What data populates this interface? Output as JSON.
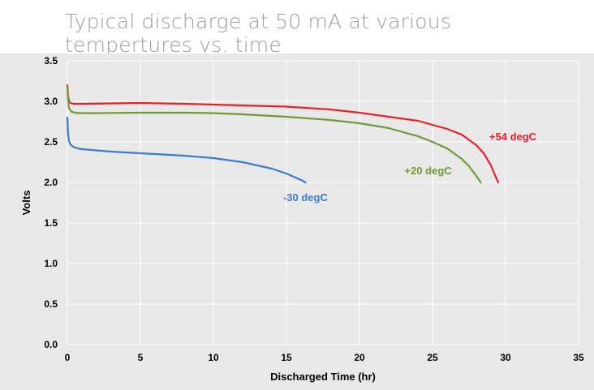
{
  "chart_data": {
    "type": "line",
    "title": "Typical discharge at 50 mA at various tempertures vs. time",
    "xlabel": "Discharged Time (hr)",
    "ylabel": "Volts",
    "xlim": [
      0,
      35
    ],
    "ylim": [
      0,
      3.5
    ],
    "xticks": [
      "0",
      "5",
      "10",
      "15",
      "20",
      "25",
      "30",
      "35"
    ],
    "yticks": [
      "0.0",
      "0.5",
      "1.0",
      "1.5",
      "2.0",
      "2.5",
      "3.0",
      "3.5"
    ],
    "grid": true,
    "plot_background": "#e8e8e8",
    "grid_color": "#ffffff",
    "series": [
      {
        "name": "+54 degC",
        "color": "#e8202a",
        "x": [
          0,
          0.05,
          0.1,
          0.2,
          0.4,
          1,
          3,
          5,
          8,
          10,
          12,
          15,
          18,
          20,
          22,
          24,
          26,
          27,
          28,
          28.5,
          29,
          29.3,
          29.5
        ],
        "y": [
          3.2,
          3.07,
          3.01,
          2.98,
          2.97,
          2.97,
          2.975,
          2.98,
          2.97,
          2.96,
          2.95,
          2.935,
          2.9,
          2.86,
          2.81,
          2.76,
          2.66,
          2.59,
          2.46,
          2.36,
          2.21,
          2.08,
          2.0
        ]
      },
      {
        "name": "+20 degC",
        "color": "#6f9a35",
        "x": [
          0,
          0.05,
          0.1,
          0.3,
          0.7,
          2,
          5,
          8,
          10,
          12,
          15,
          18,
          20,
          22,
          24,
          25,
          26,
          27,
          27.5,
          28,
          28.3
        ],
        "y": [
          3.18,
          3.02,
          2.92,
          2.87,
          2.855,
          2.855,
          2.86,
          2.86,
          2.855,
          2.84,
          2.81,
          2.77,
          2.73,
          2.67,
          2.57,
          2.5,
          2.42,
          2.29,
          2.2,
          2.08,
          2.0
        ]
      },
      {
        "name": "-30 degC",
        "color": "#3d7cc9",
        "x": [
          0,
          0.05,
          0.1,
          0.2,
          0.4,
          0.7,
          1,
          3,
          6,
          8,
          10,
          12,
          14,
          15,
          15.5,
          16,
          16.3
        ],
        "y": [
          2.8,
          2.6,
          2.52,
          2.47,
          2.44,
          2.42,
          2.41,
          2.38,
          2.35,
          2.33,
          2.3,
          2.25,
          2.17,
          2.11,
          2.07,
          2.03,
          2.0
        ]
      }
    ],
    "annotations": [
      {
        "text": "+54 degC",
        "x": 30.5,
        "y": 2.52,
        "color": "#e8202a"
      },
      {
        "text": "+20 degC",
        "x": 24.7,
        "y": 2.1,
        "color": "#6f9a35"
      },
      {
        "text": "-30 degC",
        "x": 16.3,
        "y": 1.77,
        "color": "#3d7cc9"
      }
    ]
  }
}
